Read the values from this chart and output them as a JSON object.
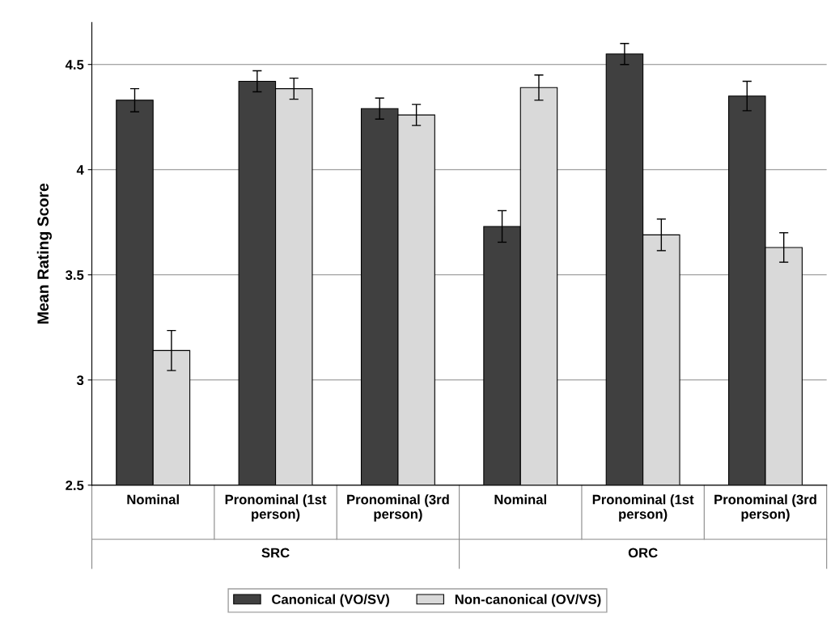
{
  "chart_data": {
    "type": "bar",
    "ylabel": "Mean Rating Score",
    "categories": [
      "Nominal",
      "Pronominal (1st\nperson)",
      "Pronominal (3rd\nperson)",
      "Nominal",
      "Pronominal (1st\nperson)",
      "Pronominal (3rd\nperson)"
    ],
    "series": [
      {
        "name": "Canonical (VO/SV)",
        "color": "#404040",
        "values": [
          4.33,
          4.42,
          4.29,
          3.73,
          4.55,
          4.35
        ],
        "errors": [
          0.055,
          0.05,
          0.05,
          0.075,
          0.05,
          0.07
        ]
      },
      {
        "name": "Non-canonical (OV/VS)",
        "color": "#d9d9d9",
        "values": [
          3.14,
          4.385,
          4.26,
          4.39,
          3.69,
          3.63
        ],
        "errors": [
          0.095,
          0.05,
          0.05,
          0.06,
          0.075,
          0.07
        ]
      }
    ],
    "annotations": [
      "SRC",
      "ORC"
    ],
    "ylim": [
      2.5,
      4.7
    ],
    "yticks": [
      2.5,
      3,
      3.5,
      4,
      4.5
    ],
    "grid": "y",
    "legend": "bottom"
  }
}
